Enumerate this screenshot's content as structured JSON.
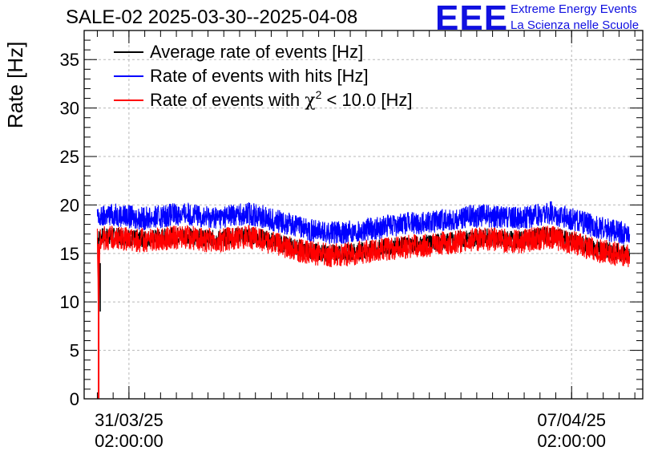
{
  "chart_data": {
    "type": "line",
    "title": "SALE-02 2025-03-30--2025-04-08",
    "ylabel": "Rate [Hz]",
    "xlabel": "",
    "ylim": [
      0,
      38
    ],
    "yticks": [
      0,
      5,
      10,
      15,
      20,
      25,
      30,
      35
    ],
    "grid": true,
    "legend_position": "top-left",
    "xlim": [
      "2025-03-30T09:00:00",
      "2025-04-08T05:00:00"
    ],
    "x_ticks": [
      {
        "x": "2025-03-31T02:00:00",
        "label_date": "31/03/25",
        "label_time": "02:00:00"
      },
      {
        "x": "2025-04-07T02:00:00",
        "label_date": "07/04/25",
        "label_time": "02:00:00"
      }
    ],
    "x": [
      "2025-03-30T14:00:00",
      "2025-03-30T14:30:00",
      "2025-03-30T15:00:00",
      "2025-03-30T17:00:00",
      "2025-03-30T20:00:00",
      "2025-03-31T00:00:00",
      "2025-03-31T06:00:00",
      "2025-03-31T12:00:00",
      "2025-03-31T18:00:00",
      "2025-04-01T00:00:00",
      "2025-04-01T06:00:00",
      "2025-04-01T12:00:00",
      "2025-04-01T18:00:00",
      "2025-04-02T00:00:00",
      "2025-04-02T06:00:00",
      "2025-04-02T12:00:00",
      "2025-04-02T18:00:00",
      "2025-04-03T00:00:00",
      "2025-04-03T06:00:00",
      "2025-04-03T12:00:00",
      "2025-04-03T18:00:00",
      "2025-04-04T00:00:00",
      "2025-04-04T06:00:00",
      "2025-04-04T12:00:00",
      "2025-04-04T18:00:00",
      "2025-04-05T00:00:00",
      "2025-04-05T06:00:00",
      "2025-04-05T12:00:00",
      "2025-04-05T18:00:00",
      "2025-04-06T00:00:00",
      "2025-04-06T06:00:00",
      "2025-04-06T12:00:00",
      "2025-04-06T18:00:00",
      "2025-04-07T00:00:00",
      "2025-04-07T06:00:00",
      "2025-04-07T12:00:00",
      "2025-04-07T18:00:00",
      "2025-04-08T00:00:00"
    ],
    "series": [
      {
        "name": "Average rate of events [Hz]",
        "color": "#000000",
        "values": [
          16.5,
          16.6,
          16.7,
          16.8,
          16.8,
          16.7,
          16.5,
          16.6,
          16.8,
          16.9,
          16.6,
          16.5,
          16.8,
          16.9,
          16.5,
          16.0,
          15.6,
          15.2,
          15.0,
          15.1,
          15.3,
          15.5,
          15.7,
          15.9,
          16.0,
          16.2,
          16.4,
          16.6,
          16.7,
          16.5,
          16.4,
          16.7,
          16.9,
          16.5,
          16.0,
          15.5,
          15.2,
          15.0
        ]
      },
      {
        "name": "Rate of events with hits [Hz]",
        "color": "#0000ff",
        "values": [
          19.0,
          18.2,
          18.6,
          18.9,
          19.0,
          18.9,
          18.6,
          18.7,
          19.0,
          19.1,
          18.8,
          18.7,
          19.0,
          19.1,
          18.7,
          18.2,
          17.8,
          17.3,
          17.1,
          17.2,
          17.4,
          17.6,
          17.9,
          18.1,
          18.2,
          18.4,
          18.6,
          18.8,
          18.9,
          18.7,
          18.6,
          18.9,
          19.2,
          18.7,
          18.2,
          17.7,
          17.3,
          17.0
        ]
      },
      {
        "name": "Rate of events with χ² < 10.0 [Hz]",
        "color": "#ff0000",
        "values": [
          16.4,
          8.0,
          16.4,
          16.6,
          16.6,
          16.5,
          16.3,
          16.4,
          16.6,
          16.7,
          16.4,
          16.3,
          16.6,
          16.7,
          16.3,
          15.8,
          15.4,
          15.0,
          14.8,
          14.9,
          15.1,
          15.3,
          15.5,
          15.7,
          15.8,
          16.0,
          16.2,
          16.4,
          16.5,
          16.3,
          16.2,
          16.5,
          16.7,
          16.3,
          15.8,
          15.3,
          15.0,
          14.7
        ]
      }
    ],
    "annotations": {
      "spike": {
        "x": "2025-03-30T14:30:00",
        "min_value": 0
      }
    }
  },
  "header": {
    "logo_text": "EEE",
    "tagline_1": "Extreme Energy Events",
    "tagline_2": "La Scienza nelle Scuole"
  },
  "legend": {
    "items": [
      {
        "label": "Average rate of events [Hz]",
        "color": "#000000"
      },
      {
        "label": "Rate of events with hits [Hz]",
        "color": "#0000ff"
      },
      {
        "label_prefix": "Rate of events with ",
        "label_chi": "χ",
        "label_sup": "2",
        "label_suffix": " < 10.0 [Hz]",
        "color": "#ff0000"
      }
    ]
  },
  "colors": {
    "accent": "#1010e0",
    "grid": "#b8b8b8"
  }
}
